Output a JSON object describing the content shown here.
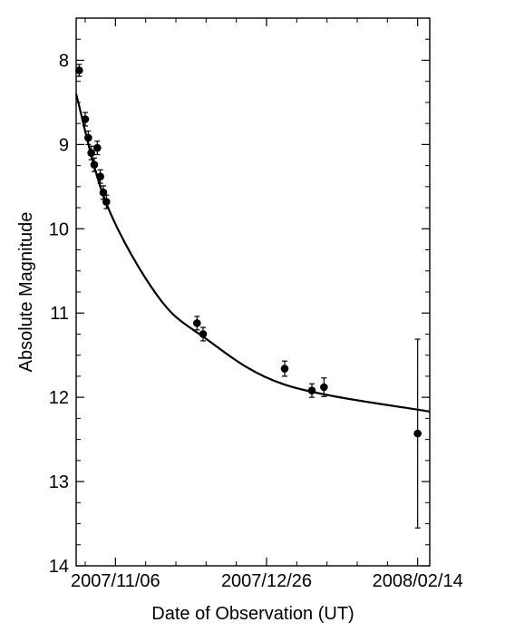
{
  "chart_data": {
    "type": "scatter",
    "title": "",
    "xlabel": "Date of Observation (UT)",
    "ylabel": "Absolute Magnitude",
    "x_tick_labels": [
      "2007/11/06",
      "2007/12/26",
      "2008/02/14"
    ],
    "x_tick_dates": [
      "2007-11-06",
      "2007-12-26",
      "2008-02-14"
    ],
    "xlim": [
      "2007-10-24",
      "2008-02-18"
    ],
    "ylim": [
      14,
      7.5
    ],
    "y_inverted": true,
    "y_ticks": [
      8,
      9,
      10,
      11,
      12,
      13,
      14
    ],
    "y_tick_labels": [
      "8",
      "9",
      "10",
      "11",
      "12",
      "13",
      "14"
    ],
    "grid": false,
    "legend": "none",
    "series": [
      {
        "kind": "points_with_errors",
        "points": [
          {
            "date": "2007-10-25",
            "mag": 8.12,
            "err": 0.07
          },
          {
            "date": "2007-10-27",
            "mag": 8.7,
            "err": 0.08
          },
          {
            "date": "2007-10-28",
            "mag": 8.92,
            "err": 0.08
          },
          {
            "date": "2007-10-29",
            "mag": 9.1,
            "err": 0.08
          },
          {
            "date": "2007-10-30",
            "mag": 9.24,
            "err": 0.08
          },
          {
            "date": "2007-10-31",
            "mag": 9.04,
            "err": 0.08
          },
          {
            "date": "2007-11-01",
            "mag": 9.38,
            "err": 0.08
          },
          {
            "date": "2007-11-02",
            "mag": 9.57,
            "err": 0.08
          },
          {
            "date": "2007-11-03",
            "mag": 9.68,
            "err": 0.08
          },
          {
            "date": "2007-12-03",
            "mag": 11.12,
            "err": 0.08
          },
          {
            "date": "2007-12-05",
            "mag": 11.25,
            "err": 0.08
          },
          {
            "date": "2008-01-01",
            "mag": 11.66,
            "err": 0.09
          },
          {
            "date": "2008-01-10",
            "mag": 11.92,
            "err": 0.08
          },
          {
            "date": "2008-01-14",
            "mag": 11.88,
            "err": 0.11
          },
          {
            "date": "2008-02-14",
            "mag": 12.43,
            "err": 1.12
          }
        ]
      },
      {
        "kind": "fit_curve",
        "model": "exponential",
        "points": [
          {
            "date": "2007-10-24",
            "mag": 8.4
          },
          {
            "date": "2007-11-03",
            "mag": 9.7
          },
          {
            "date": "2007-11-20",
            "mag": 10.8
          },
          {
            "date": "2007-12-05",
            "mag": 11.28
          },
          {
            "date": "2008-01-01",
            "mag": 11.85
          },
          {
            "date": "2008-02-18",
            "mag": 12.17
          }
        ]
      }
    ],
    "colors": {
      "marker": "#000000",
      "line": "#000000",
      "axes": "#000000"
    }
  }
}
